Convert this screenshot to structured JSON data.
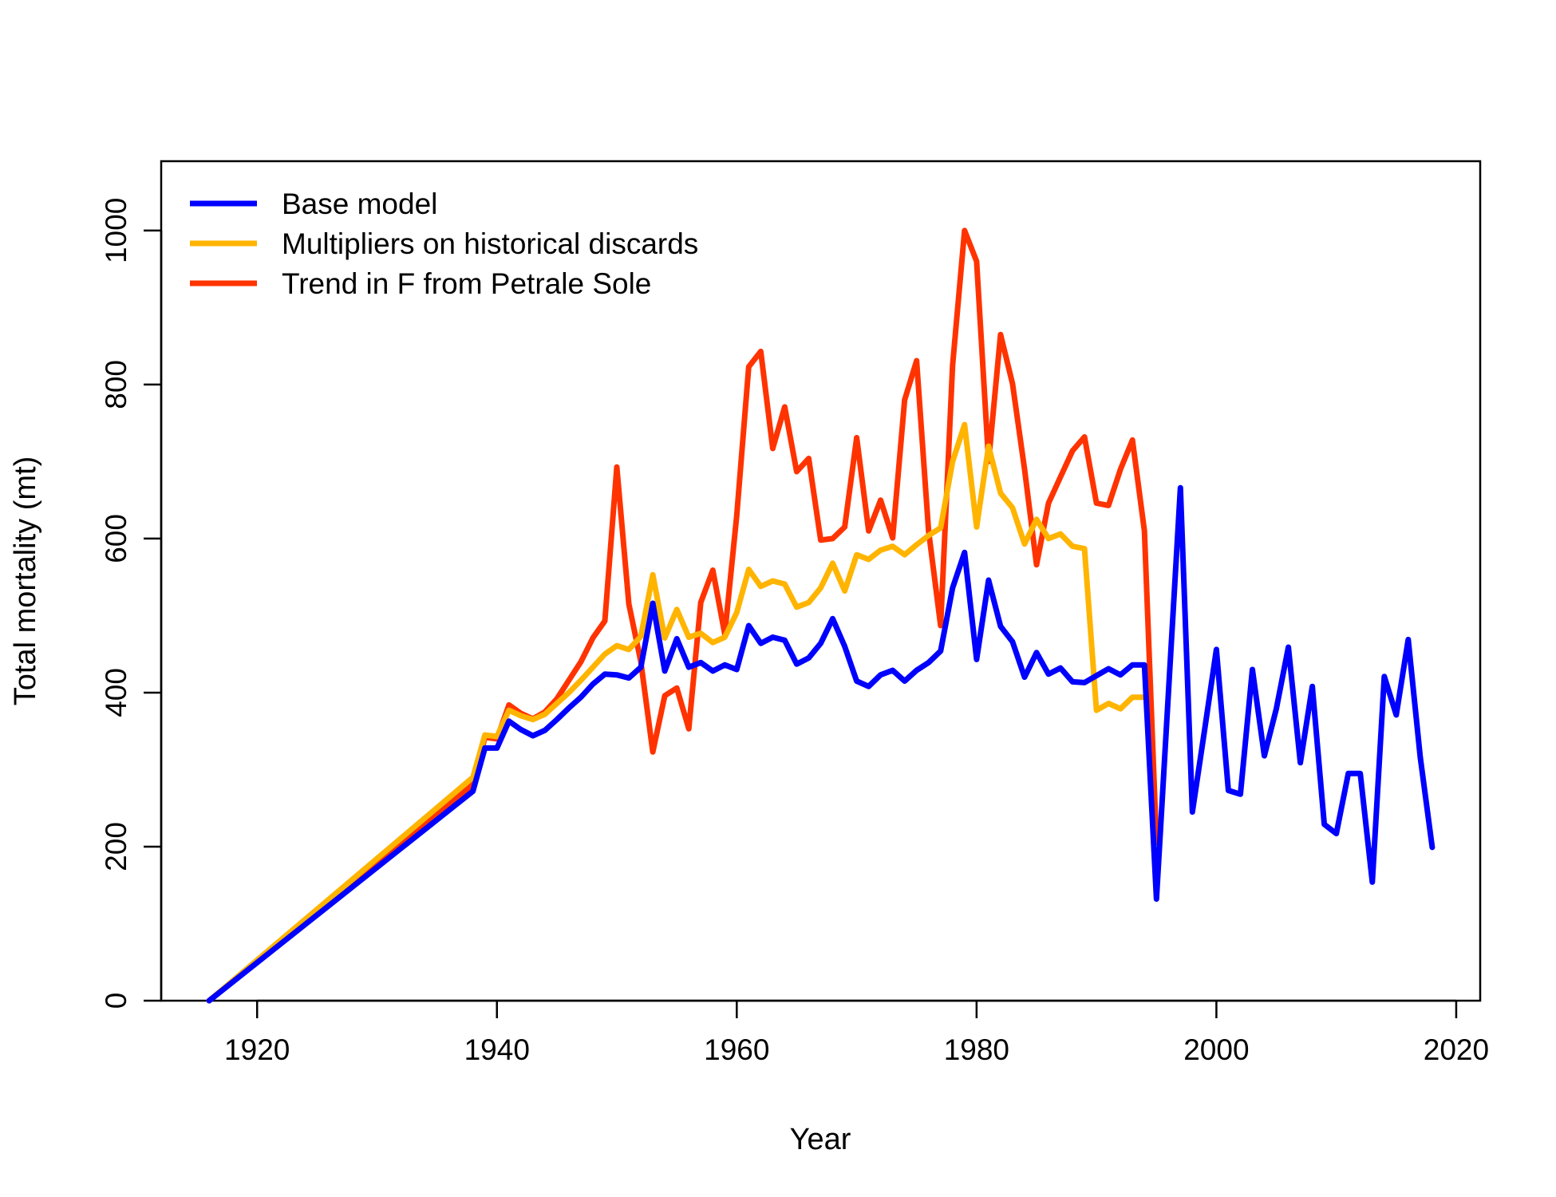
{
  "chart_data": {
    "type": "line",
    "title": "",
    "xlabel": "Year",
    "ylabel": "Total mortality (mt)",
    "xlim": [
      1912,
      2022
    ],
    "ylim": [
      0,
      1090
    ],
    "xticks": [
      1920,
      1940,
      1960,
      1980,
      2000,
      2020
    ],
    "yticks": [
      0,
      200,
      400,
      600,
      800,
      1000
    ],
    "grid": false,
    "legend_position": "top-left",
    "series": [
      {
        "name": "Base model",
        "color": "#0000FF",
        "x": [
          1916,
          1938,
          1939,
          1940,
          1941,
          1942,
          1943,
          1944,
          1945,
          1946,
          1947,
          1948,
          1949,
          1950,
          1951,
          1952,
          1953,
          1954,
          1955,
          1956,
          1957,
          1958,
          1959,
          1960,
          1961,
          1962,
          1963,
          1964,
          1965,
          1966,
          1967,
          1968,
          1969,
          1970,
          1971,
          1972,
          1973,
          1974,
          1975,
          1976,
          1977,
          1978,
          1979,
          1980,
          1981,
          1982,
          1983,
          1984,
          1985,
          1986,
          1987,
          1988,
          1989,
          1990,
          1991,
          1992,
          1993,
          1994,
          1995,
          1996,
          1997,
          1998,
          1999,
          2000,
          2001,
          2002,
          2003,
          2004,
          2005,
          2006,
          2007,
          2008,
          2009,
          2010,
          2011,
          2012,
          2013,
          2014,
          2015,
          2016,
          2017,
          2018
        ],
        "y": [
          0,
          272,
          328,
          328,
          363,
          352,
          344,
          351,
          365,
          380,
          394,
          411,
          424,
          423,
          419,
          433,
          516,
          428,
          470,
          433,
          439,
          428,
          436,
          430,
          487,
          464,
          472,
          468,
          437,
          445,
          464,
          496,
          460,
          415,
          408,
          423,
          429,
          415,
          429,
          439,
          454,
          536,
          582,
          443,
          546,
          486,
          466,
          420,
          452,
          424,
          432,
          414,
          413,
          422,
          431,
          423,
          436,
          436,
          132,
          400,
          666,
          245,
          350,
          456,
          273,
          268,
          430,
          318,
          379,
          459,
          309,
          408,
          229,
          217,
          295,
          295,
          154,
          421,
          371,
          469,
          316,
          199
        ]
      },
      {
        "name": "Multipliers on historical discards",
        "color": "#FFB400",
        "x": [
          1916,
          1938,
          1939,
          1940,
          1941,
          1942,
          1943,
          1944,
          1945,
          1946,
          1947,
          1948,
          1949,
          1950,
          1951,
          1952,
          1953,
          1954,
          1955,
          1956,
          1957,
          1958,
          1959,
          1960,
          1961,
          1962,
          1963,
          1964,
          1965,
          1966,
          1967,
          1968,
          1969,
          1970,
          1971,
          1972,
          1973,
          1974,
          1975,
          1976,
          1977,
          1978,
          1979,
          1980,
          1981,
          1982,
          1983,
          1984,
          1985,
          1986,
          1987,
          1988,
          1989,
          1990,
          1991,
          1992,
          1993,
          1994
        ],
        "y": [
          0,
          290,
          345,
          343,
          377,
          370,
          365,
          372,
          386,
          400,
          416,
          433,
          450,
          461,
          456,
          473,
          553,
          471,
          508,
          472,
          477,
          465,
          472,
          504,
          560,
          538,
          545,
          541,
          511,
          517,
          536,
          568,
          532,
          579,
          573,
          585,
          590,
          579,
          592,
          604,
          614,
          700,
          748,
          615,
          720,
          659,
          640,
          593,
          625,
          600,
          606,
          590,
          587,
          377,
          386,
          379,
          394,
          394
        ]
      },
      {
        "name": "Trend in F from Petrale Sole",
        "color": "#FF3300",
        "x": [
          1916,
          1938,
          1939,
          1940,
          1941,
          1942,
          1943,
          1944,
          1945,
          1946,
          1947,
          1948,
          1949,
          1950,
          1951,
          1952,
          1953,
          1954,
          1955,
          1956,
          1957,
          1958,
          1959,
          1960,
          1961,
          1962,
          1963,
          1964,
          1965,
          1966,
          1967,
          1968,
          1969,
          1970,
          1971,
          1972,
          1973,
          1974,
          1975,
          1976,
          1977,
          1978,
          1979,
          1980,
          1981,
          1982,
          1983,
          1984,
          1985,
          1986,
          1987,
          1988,
          1989,
          1990,
          1991,
          1992,
          1993,
          1994,
          1995
        ],
        "y": [
          0,
          281,
          342,
          340,
          384,
          373,
          366,
          375,
          392,
          416,
          440,
          471,
          493,
          693,
          515,
          440,
          323,
          396,
          406,
          353,
          517,
          559,
          476,
          630,
          823,
          843,
          717,
          771,
          687,
          704,
          598,
          600,
          615,
          731,
          610,
          650,
          601,
          780,
          831,
          610,
          487,
          825,
          1000,
          960,
          700,
          865,
          801,
          690,
          566,
          646,
          680,
          714,
          732,
          646,
          643,
          690,
          728,
          610,
          205
        ]
      }
    ]
  }
}
